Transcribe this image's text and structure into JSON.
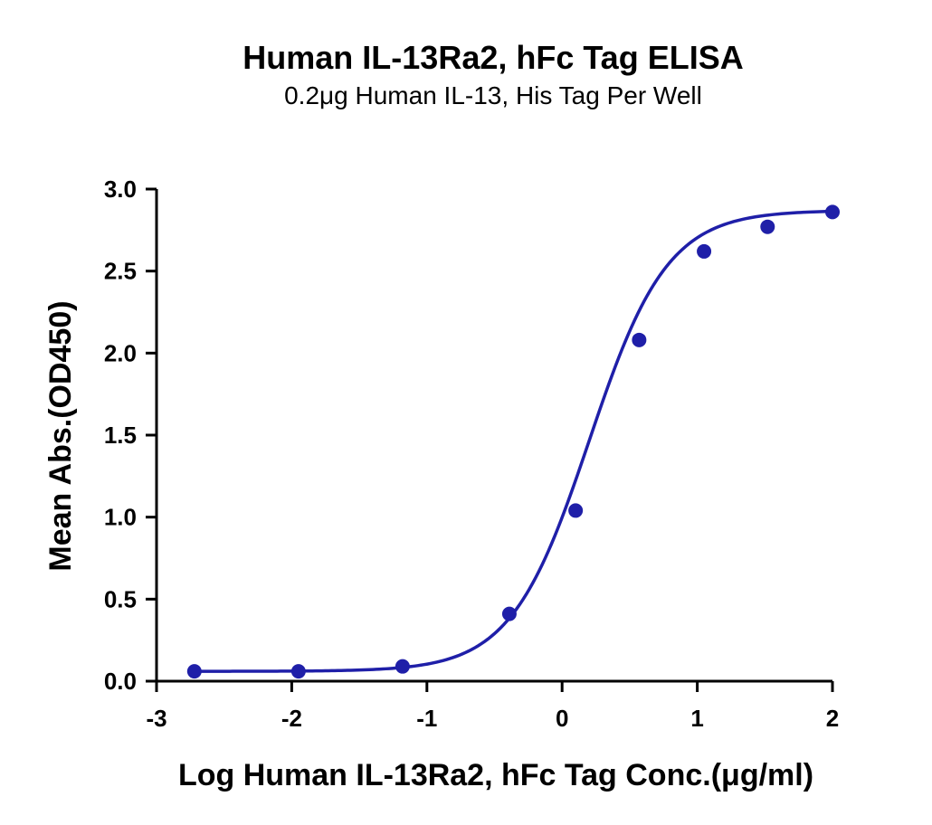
{
  "chart_data": {
    "type": "scatter",
    "title": "Human IL-13Ra2, hFc Tag ELISA",
    "subtitle": "0.2μg Human IL-13, His Tag Per Well",
    "xlabel": "Log Human IL-13Ra2, hFc Tag Conc.(μg/ml)",
    "ylabel": "Mean Abs.(OD450)",
    "xlim": [
      -3,
      2
    ],
    "ylim": [
      0,
      3
    ],
    "x_ticks": [
      -3,
      -2,
      -1,
      0,
      1,
      2
    ],
    "y_ticks": [
      0.0,
      0.5,
      1.0,
      1.5,
      2.0,
      2.5,
      3.0
    ],
    "x_tick_labels": [
      "-3",
      "-2",
      "-1",
      "0",
      "1",
      "2"
    ],
    "y_tick_labels": [
      "0.0",
      "0.5",
      "1.0",
      "1.5",
      "2.0",
      "2.5",
      "3.0"
    ],
    "grid": false,
    "color": "#1f1fa8",
    "series": [
      {
        "x": [
          -2.72,
          -1.95,
          -1.18,
          -0.39,
          0.1,
          0.57,
          1.05,
          1.52,
          2.0
        ],
        "y": [
          0.06,
          0.06,
          0.09,
          0.41,
          1.04,
          2.08,
          2.62,
          2.77,
          2.86
        ]
      }
    ],
    "fit_curve": {
      "model": "4PL",
      "bottom": 0.06,
      "top": 2.87,
      "logEC50": 0.2,
      "hill": 1.5
    }
  }
}
